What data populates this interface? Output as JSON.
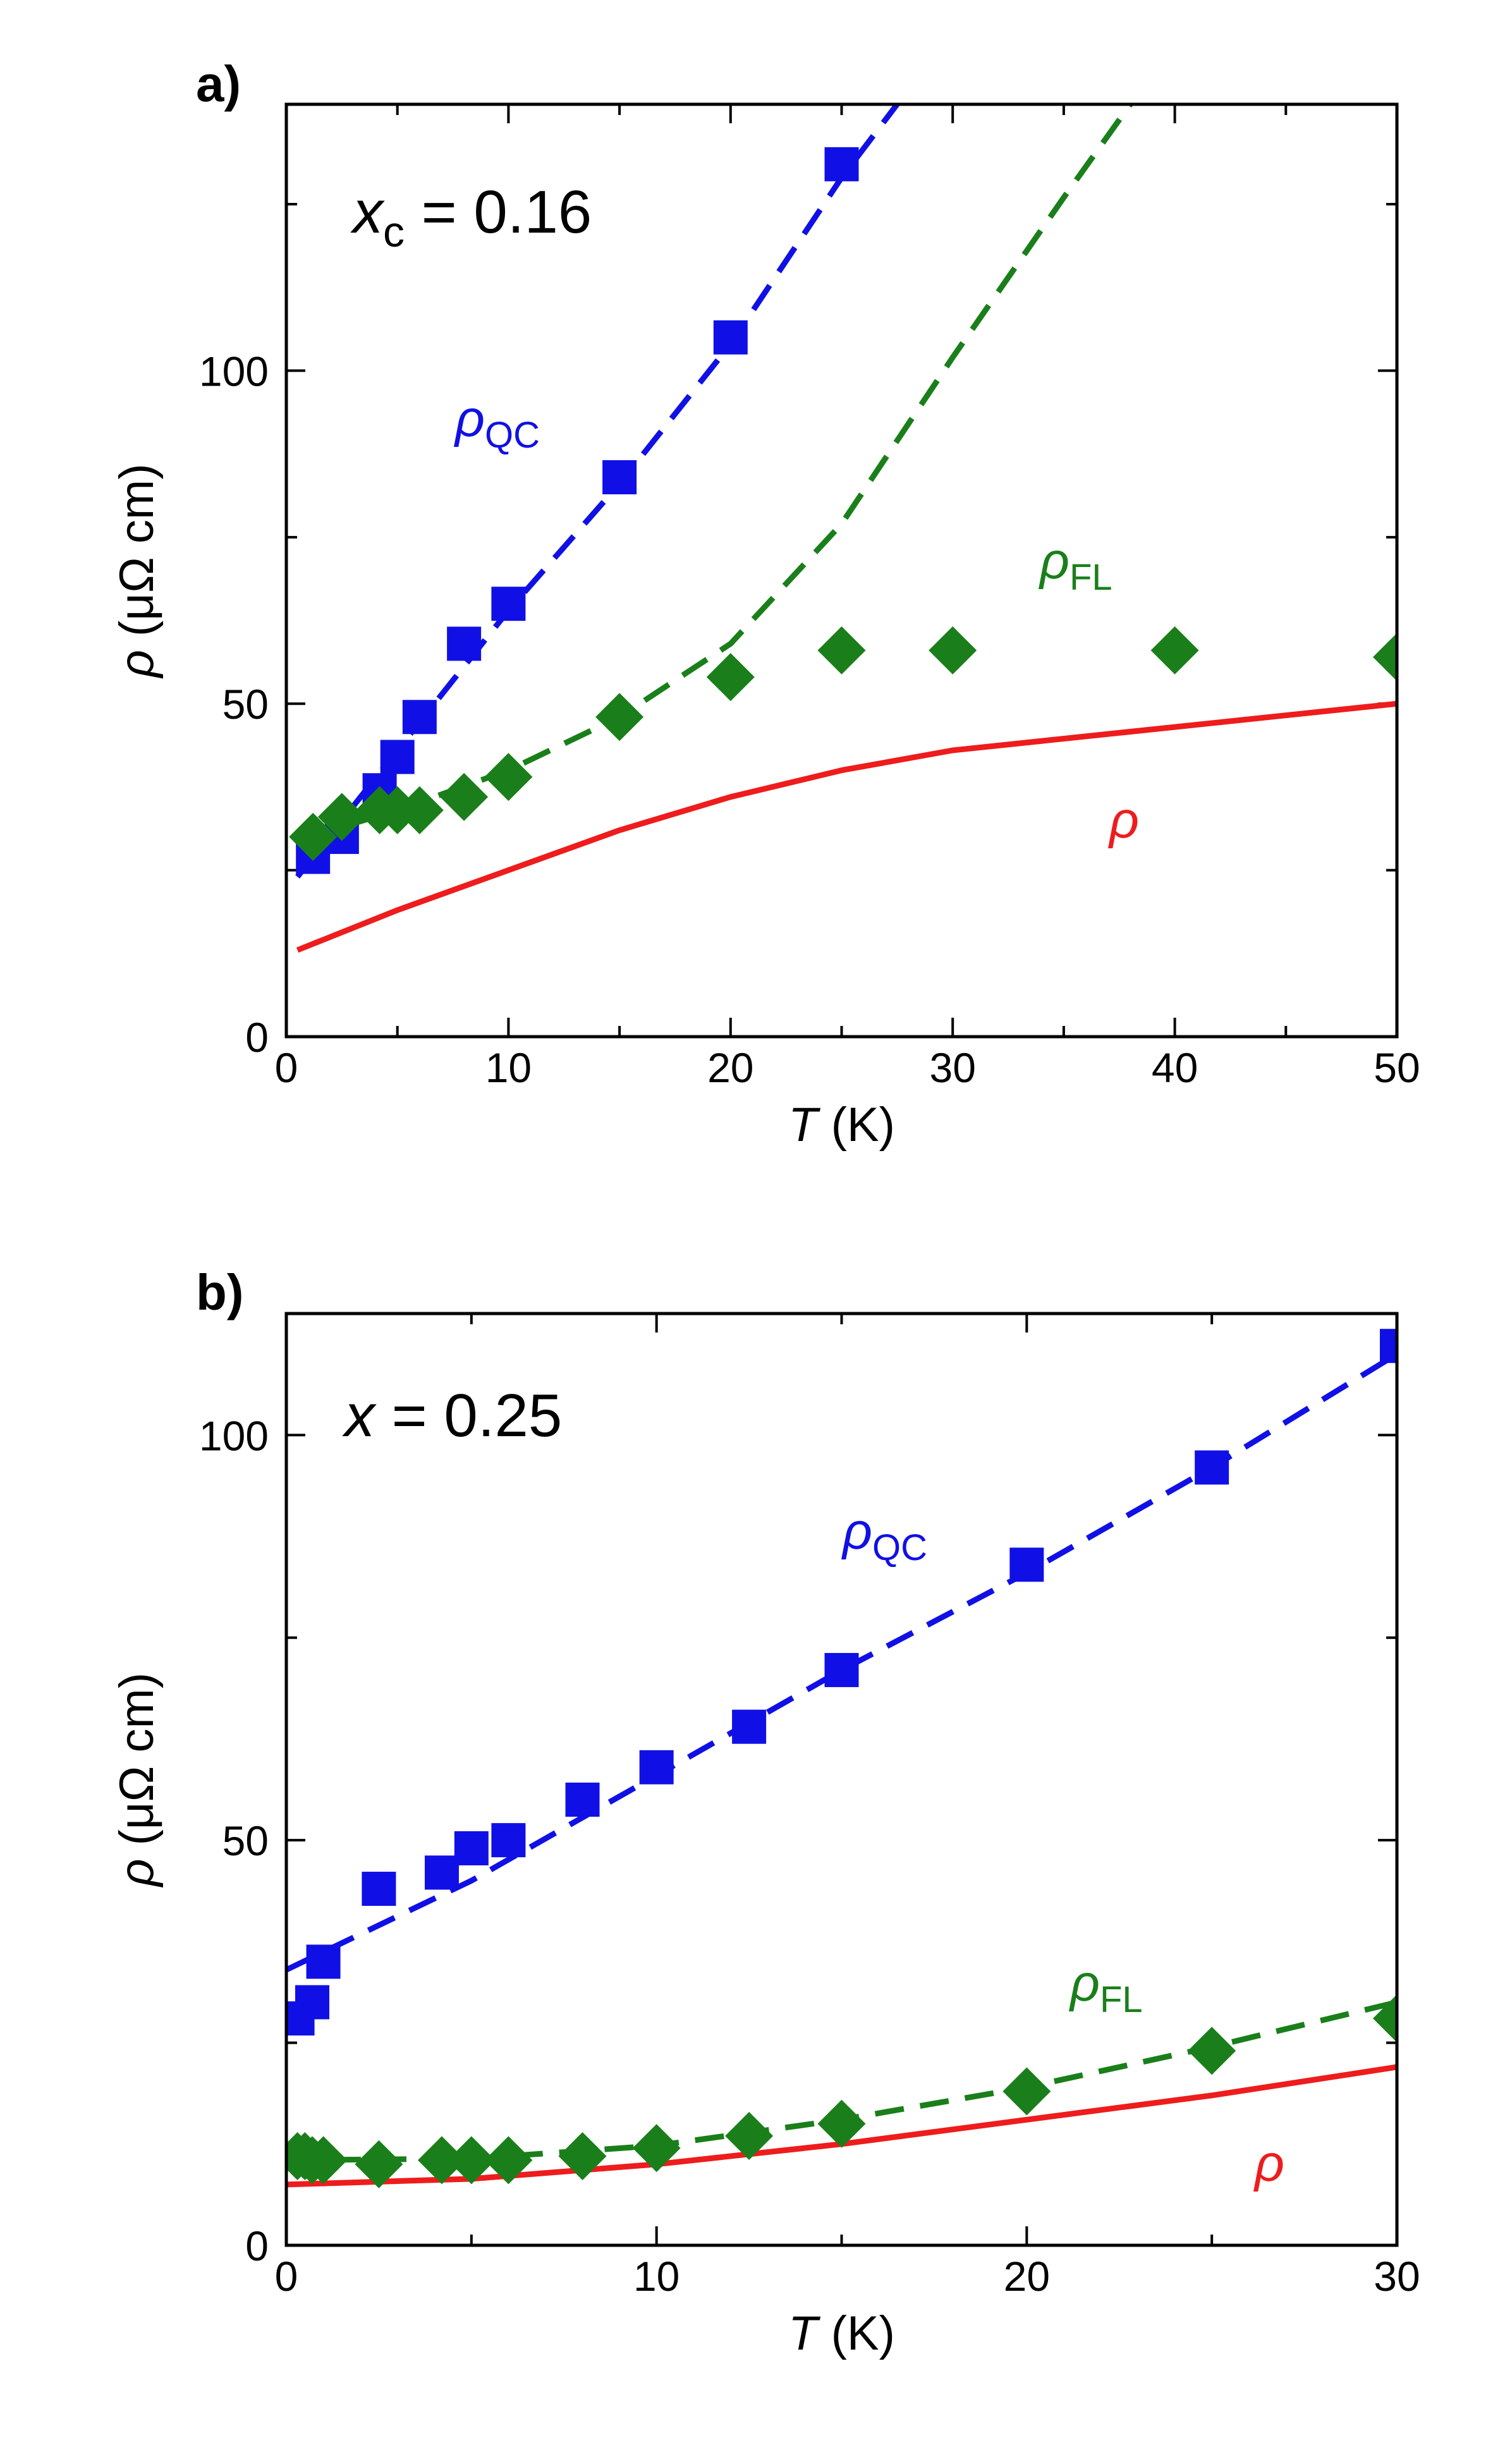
{
  "chart_data": [
    {
      "type": "scatter",
      "panel_label": "a)",
      "annotation": {
        "var": "x",
        "sub": "c",
        "text": " = 0.16"
      },
      "xlabel": {
        "var": "T",
        "unit": " (K)"
      },
      "ylabel": {
        "var": "ρ",
        "unit": " (μΩ cm)"
      },
      "xlim": [
        0,
        50
      ],
      "ylim": [
        0,
        140
      ],
      "xticks": [
        0,
        10,
        20,
        30,
        40,
        50
      ],
      "yticks": [
        0,
        50,
        100
      ],
      "series": [
        {
          "name": "ρQC",
          "label": "ρ",
          "label_sub": "QC",
          "color": "#1010e6",
          "marker": "square",
          "x": [
            1.2,
            2.5,
            4.2,
            5.0,
            6.0,
            8.0,
            10.0,
            15.0,
            20.0,
            25.0
          ],
          "y": [
            27,
            30,
            37,
            42,
            48,
            59,
            65,
            84,
            105,
            131
          ],
          "fit": {
            "style": "dashed",
            "x": [
              0.5,
              5,
              10,
              15,
              20,
              25,
              27.5
            ],
            "y": [
              24,
              43,
              64,
              83,
              104,
              129,
              140
            ]
          }
        },
        {
          "name": "ρFL",
          "label": "ρ",
          "label_sub": "FL",
          "color": "#1a7f1a",
          "marker": "diamond",
          "x": [
            1.2,
            2.5,
            4.2,
            5.0,
            6.0,
            8.0,
            10.0,
            15.0,
            20.0,
            25.0,
            30.0,
            40.0,
            50.0
          ],
          "y": [
            30,
            33,
            34,
            34,
            34,
            36,
            39,
            48,
            54,
            58,
            58,
            58,
            57
          ],
          "fit": {
            "style": "dashed",
            "x": [
              1,
              5,
              10,
              15,
              20,
              25,
              30,
              35,
              38
            ],
            "y": [
              30,
              34,
              40,
              48,
              59,
              77,
              102,
              126,
              140
            ]
          }
        },
        {
          "name": "ρ",
          "label": "ρ",
          "label_sub": "",
          "color": "#ee1c1c",
          "marker": "line",
          "x": [
            0.5,
            5,
            10,
            15,
            20,
            25,
            30,
            40,
            50
          ],
          "y": [
            13,
            19,
            25,
            31,
            36,
            40,
            43,
            46.5,
            50
          ]
        }
      ]
    },
    {
      "type": "scatter",
      "panel_label": "b)",
      "annotation": {
        "var": "x",
        "sub": "",
        "text": " = 0.25"
      },
      "xlabel": {
        "var": "T",
        "unit": " (K)"
      },
      "ylabel": {
        "var": "ρ",
        "unit": " (μΩ cm)"
      },
      "xlim": [
        0,
        30
      ],
      "ylim": [
        0,
        115
      ],
      "xticks": [
        0,
        10,
        20,
        30
      ],
      "yticks": [
        0,
        50,
        100
      ],
      "series": [
        {
          "name": "ρQC",
          "label": "ρ",
          "label_sub": "QC",
          "color": "#1010e6",
          "marker": "square",
          "x": [
            0.3,
            0.7,
            1.0,
            2.5,
            4.2,
            5.0,
            6.0,
            8.0,
            10.0,
            12.5,
            15.0,
            20.0,
            25.0,
            30.0
          ],
          "y": [
            28,
            30,
            35,
            44,
            46,
            49,
            50,
            55,
            59,
            64,
            71,
            84,
            96,
            111
          ],
          "fit": {
            "style": "dashed",
            "x": [
              0,
              5,
              10,
              15,
              20,
              25,
              30
            ],
            "y": [
              34,
              45,
              58,
              71,
              83,
              96,
              110
            ]
          }
        },
        {
          "name": "ρFL",
          "label": "ρ",
          "label_sub": "FL",
          "color": "#1a7f1a",
          "marker": "diamond",
          "x": [
            0.3,
            0.5,
            0.7,
            1.0,
            2.5,
            4.2,
            5.0,
            6.0,
            8.0,
            10.0,
            12.5,
            15.0,
            20.0,
            25.0,
            30.0
          ],
          "y": [
            11,
            11,
            10.5,
            10.5,
            10,
            10.5,
            10.5,
            10.5,
            11,
            12,
            13.5,
            15,
            19,
            24,
            28
          ],
          "fit": {
            "style": "dashed",
            "x": [
              0,
              5,
              10,
              15,
              20,
              25,
              30
            ],
            "y": [
              10.5,
              10.7,
              12.3,
              15.5,
              19.5,
              24.5,
              30
            ]
          }
        },
        {
          "name": "ρ",
          "label": "ρ",
          "label_sub": "",
          "color": "#ee1c1c",
          "marker": "line",
          "x": [
            0,
            5,
            10,
            15,
            20,
            25,
            30
          ],
          "y": [
            7.5,
            8.2,
            10,
            12.5,
            15.5,
            18.5,
            22
          ]
        }
      ]
    }
  ]
}
